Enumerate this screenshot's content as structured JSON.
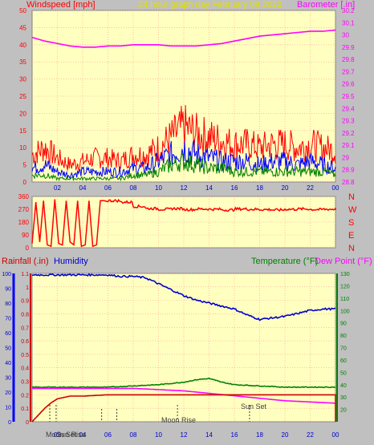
{
  "header": {
    "windspeed_title": "Windspeed [mph]",
    "date_title": "24 hour graph day   February 09 2022",
    "barometer_title": "Barometer [.in]"
  },
  "lower_header": {
    "rainfall_title": "Rainfall (.in)",
    "humidity_title": "Humidity",
    "temperature_title": "Temperature (°F)",
    "dewpoint_title": "Dew Point (°F)"
  },
  "events": {
    "moon_set": "Moon Set",
    "moon_rise": "Moon Rise",
    "sun_set": "Sun Set",
    "sun_rise": "Sun Rise"
  },
  "colors": {
    "plot_bg": "#ffffc0",
    "frame_bg": "#c0c0c0",
    "grid": "#ff9a9a",
    "wind_red": "#ff0000",
    "wind_blue": "#0000ff",
    "wind_green": "#008000",
    "barometer": "#ff00ff",
    "humidity": "#0000cc",
    "temperature": "#008000",
    "dewpoint": "#ff00ff",
    "rain": "#cc0000",
    "date_title": "#e0e000"
  },
  "chart_data": [
    {
      "type": "line",
      "name": "wind-barometer",
      "x_ticks": [
        "02",
        "04",
        "06",
        "08",
        "10",
        "12",
        "14",
        "16",
        "18",
        "20",
        "22",
        "00"
      ],
      "left_axis": {
        "label": "Windspeed [mph]",
        "range": [
          0,
          50
        ],
        "ticks": [
          0,
          5,
          10,
          15,
          20,
          25,
          30,
          35,
          40,
          45,
          50
        ]
      },
      "right_axis": {
        "label": "Barometer [.in]",
        "range": [
          28.8,
          30.2
        ],
        "ticks": [
          "28.8",
          "28.9",
          "29",
          "29.1",
          "29.2",
          "29.3",
          "29.4",
          "29.5",
          "29.6",
          "29.7",
          "29.8",
          "29.9",
          "30",
          "30.1",
          "30.2"
        ]
      },
      "series": [
        {
          "name": "Barometer",
          "axis": "right",
          "x": [
            0,
            1,
            2,
            3,
            4,
            5,
            6,
            7,
            8,
            9,
            10,
            11,
            12,
            13,
            14,
            15,
            16,
            17,
            18,
            19,
            20,
            21,
            22,
            23,
            24
          ],
          "values": [
            29.98,
            29.95,
            29.93,
            29.91,
            29.9,
            29.9,
            29.91,
            29.91,
            29.92,
            29.92,
            29.92,
            29.91,
            29.91,
            29.91,
            29.92,
            29.93,
            29.95,
            29.97,
            29.99,
            30.0,
            30.01,
            30.02,
            30.03,
            30.03,
            30.04
          ]
        },
        {
          "name": "Wind gust",
          "axis": "left",
          "x": [
            0,
            1,
            2,
            3,
            4,
            5,
            6,
            7,
            8,
            9,
            10,
            11,
            12,
            13,
            14,
            15,
            16,
            17,
            18,
            19,
            20,
            21,
            22,
            23,
            24
          ],
          "values": [
            8,
            10,
            7,
            5,
            6,
            7,
            7,
            6,
            8,
            8,
            10,
            13,
            16,
            14,
            13,
            12,
            11,
            11,
            10,
            11,
            11,
            10,
            11,
            10,
            9
          ]
        },
        {
          "name": "Wind speed",
          "axis": "left",
          "x": [
            0,
            1,
            2,
            3,
            4,
            5,
            6,
            7,
            8,
            9,
            10,
            11,
            12,
            13,
            14,
            15,
            16,
            17,
            18,
            19,
            20,
            21,
            22,
            23,
            24
          ],
          "values": [
            4,
            5,
            3,
            2,
            3,
            3,
            3,
            3,
            4,
            4,
            6,
            8,
            10,
            8,
            7,
            6,
            6,
            6,
            5,
            6,
            6,
            5,
            6,
            5,
            4
          ]
        },
        {
          "name": "Wind average",
          "axis": "left",
          "x": [
            0,
            1,
            2,
            3,
            4,
            5,
            6,
            7,
            8,
            9,
            10,
            11,
            12,
            13,
            14,
            15,
            16,
            17,
            18,
            19,
            20,
            21,
            22,
            23,
            24
          ],
          "values": [
            2,
            2,
            1,
            1,
            1,
            1,
            1,
            1,
            2,
            2,
            3,
            5,
            6,
            5,
            4,
            4,
            3,
            3,
            3,
            3,
            3,
            3,
            3,
            3,
            2
          ]
        }
      ]
    },
    {
      "type": "line",
      "name": "wind-direction",
      "x_ticks": [
        "02",
        "04",
        "06",
        "08",
        "10",
        "12",
        "14",
        "16",
        "18",
        "20",
        "22",
        "00"
      ],
      "left_axis": {
        "range": [
          0,
          360
        ],
        "ticks": [
          0,
          90,
          180,
          270,
          360
        ]
      },
      "right_axis": {
        "ticks": [
          "N",
          "W",
          "S",
          "E",
          "N"
        ]
      },
      "series": [
        {
          "name": "Wind direction",
          "x": [
            0,
            0.3,
            0.6,
            0.9,
            1.2,
            1.5,
            1.8,
            2.1,
            2.4,
            2.7,
            3.0,
            3.3,
            3.6,
            3.9,
            4.2,
            4.5,
            4.8,
            5.1,
            5.4,
            5.7,
            6,
            7,
            8,
            9,
            10,
            11,
            12,
            13,
            14,
            15,
            16,
            17,
            18,
            19,
            20,
            21,
            22,
            23,
            24
          ],
          "values": [
            30,
            320,
            40,
            330,
            20,
            10,
            340,
            30,
            20,
            330,
            40,
            20,
            330,
            10,
            20,
            330,
            10,
            20,
            330,
            330,
            330,
            320,
            290,
            275,
            270,
            275,
            268,
            272,
            270,
            265,
            272,
            270,
            268,
            265,
            270,
            272,
            268,
            270,
            272
          ]
        }
      ]
    },
    {
      "type": "line",
      "name": "rain-humidity-temperature",
      "x_ticks": [
        "02",
        "04",
        "06",
        "08",
        "10",
        "12",
        "14",
        "16",
        "18",
        "20",
        "22",
        "00"
      ],
      "left_axis_outer": {
        "label": "Humidity",
        "range": [
          0,
          100
        ],
        "ticks": [
          0,
          10,
          20,
          30,
          40,
          50,
          60,
          70,
          80,
          90,
          100
        ]
      },
      "left_axis_inner": {
        "label": "Rainfall (.in)",
        "range": [
          0,
          1.1
        ],
        "ticks": [
          "0",
          "0.1",
          "0.2",
          "0.3",
          "0.4",
          "0.5",
          "0.6",
          "0.7",
          "0.8",
          "0.9",
          "1",
          "1.1"
        ]
      },
      "right_axis": {
        "label": "Temperature (°F)",
        "range": [
          10,
          130
        ],
        "ticks": [
          20,
          30,
          40,
          50,
          60,
          70,
          80,
          90,
          100,
          110,
          120,
          130
        ]
      },
      "series": [
        {
          "name": "Humidity",
          "axis": "outer",
          "x": [
            0,
            1,
            2,
            3,
            4,
            5,
            6,
            7,
            8,
            9,
            10,
            11,
            12,
            13,
            14,
            15,
            16,
            17,
            18,
            19,
            20,
            21,
            22,
            23,
            24
          ],
          "values": [
            99,
            99,
            99,
            99,
            99,
            99,
            99,
            98,
            98,
            97,
            93,
            89,
            85,
            82,
            80,
            78,
            76,
            72,
            69,
            70,
            71,
            73,
            75,
            76,
            76
          ]
        },
        {
          "name": "Temperature",
          "axis": "right",
          "x": [
            0,
            2,
            4,
            6,
            8,
            10,
            12,
            13,
            14,
            15,
            16,
            18,
            20,
            22,
            24
          ],
          "values": [
            38,
            38,
            38,
            38,
            39,
            40,
            42,
            44,
            45,
            42,
            40,
            39,
            38,
            38,
            38
          ]
        },
        {
          "name": "Dew Point",
          "axis": "right",
          "x": [
            0,
            2,
            4,
            6,
            8,
            10,
            12,
            14,
            16,
            18,
            20,
            22,
            24
          ],
          "values": [
            37,
            37,
            37,
            37,
            37,
            36,
            35,
            33,
            31,
            29,
            27,
            26,
            25
          ]
        },
        {
          "name": "Rainfall",
          "axis": "inner",
          "x": [
            0,
            0.5,
            1,
            1.5,
            2,
            2.5,
            3,
            4,
            6,
            8,
            10,
            12,
            14,
            16,
            18,
            20,
            22,
            24
          ],
          "values": [
            0,
            0.05,
            0.1,
            0.14,
            0.17,
            0.18,
            0.19,
            0.19,
            0.2,
            0.2,
            0.2,
            0.2,
            0.2,
            0.2,
            0.2,
            0.2,
            0.2,
            0.2
          ]
        }
      ],
      "event_markers": [
        {
          "label": "Moon Set",
          "hour": 1.4
        },
        {
          "label": "Sun Rise",
          "hour": 1.9
        },
        {
          "label": "Moon Rise",
          "hour": 11.5
        },
        {
          "label": "Sun Set",
          "hour": 17.2
        }
      ]
    }
  ]
}
